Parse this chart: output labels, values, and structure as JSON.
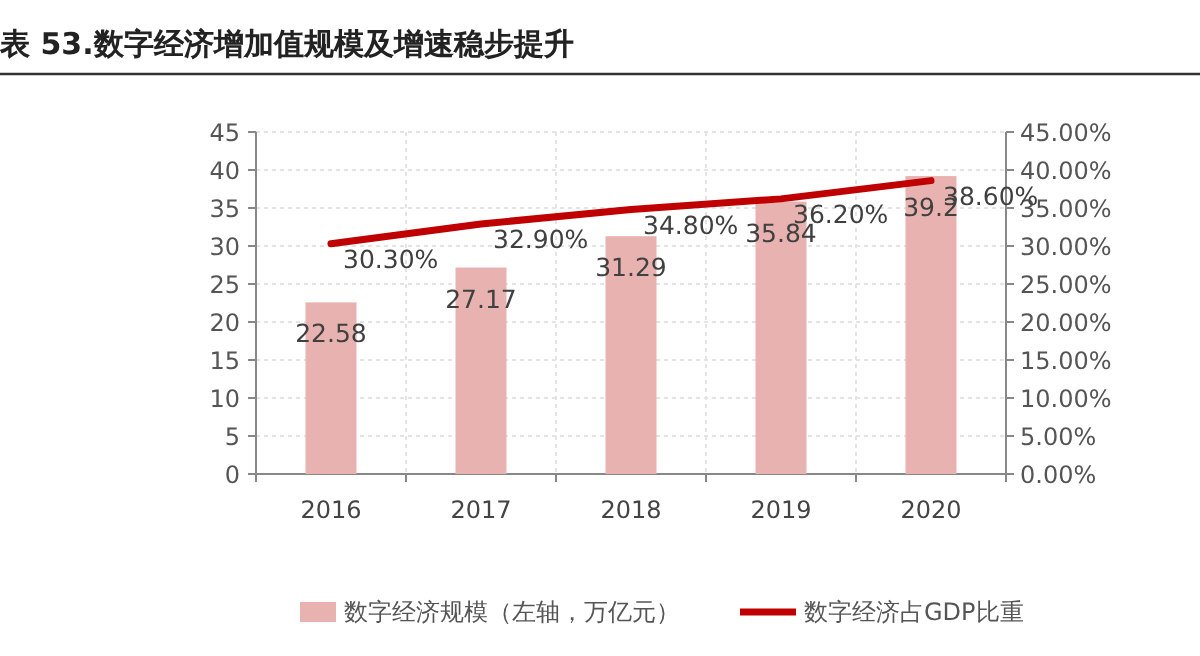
{
  "chart_data": {
    "type": "bar",
    "title": "表 53.数字经济增加值规模及增速稳步提升",
    "categories": [
      "2016",
      "2017",
      "2018",
      "2019",
      "2020"
    ],
    "series": [
      {
        "name": "数字经济规模（左轴，万亿元）",
        "color": "#e8b2b0",
        "values": [
          22.58,
          27.17,
          31.29,
          35.84,
          39.2
        ]
      },
      {
        "name": "数字经济占GDP比重",
        "type": "line",
        "axis": "y2",
        "color": "#c00000",
        "values": [
          30.3,
          32.9,
          34.8,
          36.2,
          38.6
        ],
        "value_labels": [
          "30.30%",
          "32.90%",
          "34.80%",
          "36.20%",
          "38.60%"
        ]
      }
    ],
    "data_labels": true,
    "ylim": [
      0,
      45
    ],
    "yticks": [
      0,
      5,
      10,
      15,
      20,
      25,
      30,
      35,
      40,
      45
    ],
    "y2lim": [
      0,
      45
    ],
    "y2ticks": [
      {
        "value": 0,
        "label": "0.00%"
      },
      {
        "value": 5,
        "label": "5.00%"
      },
      {
        "value": 10,
        "label": "10.00%"
      },
      {
        "value": 15,
        "label": "15.00%"
      },
      {
        "value": 20,
        "label": "20.00%"
      },
      {
        "value": 25,
        "label": "25.00%"
      },
      {
        "value": 30,
        "label": "30.00%"
      },
      {
        "value": 35,
        "label": "35.00%"
      },
      {
        "value": 40,
        "label": "40.00%"
      },
      {
        "value": 45,
        "label": "45.00%"
      }
    ],
    "grid": true,
    "legend": "bottom",
    "marker": "none",
    "line_style": "solid"
  }
}
